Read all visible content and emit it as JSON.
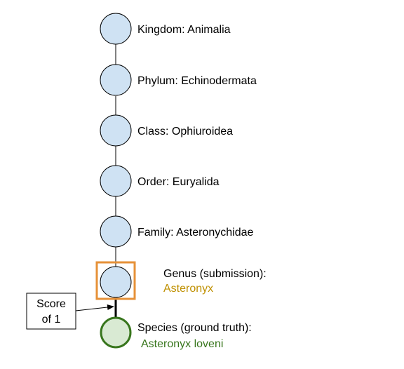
{
  "colors": {
    "node_fill": "#cfe2f3",
    "node_stroke": "#000000",
    "species_fill": "#d9ead3",
    "species_stroke": "#38761d",
    "highlight_box": "#e69138",
    "genus_value": "#bf9000",
    "species_value": "#38761d",
    "text": "#000000"
  },
  "taxonomy": {
    "kingdom": "Kingdom: Animalia",
    "phylum": "Phylum: Echinodermata",
    "class": "Class: Ophiuroidea",
    "order": "Order: Euryalida",
    "family": "Family: Asteronychidae",
    "genus_label": "Genus (submission):",
    "genus_value": "Asteronyx",
    "species_label": "Species (ground truth):",
    "species_value": "Asteronyx loveni"
  },
  "score_callout": {
    "line1": "Score",
    "line2": "of 1"
  }
}
